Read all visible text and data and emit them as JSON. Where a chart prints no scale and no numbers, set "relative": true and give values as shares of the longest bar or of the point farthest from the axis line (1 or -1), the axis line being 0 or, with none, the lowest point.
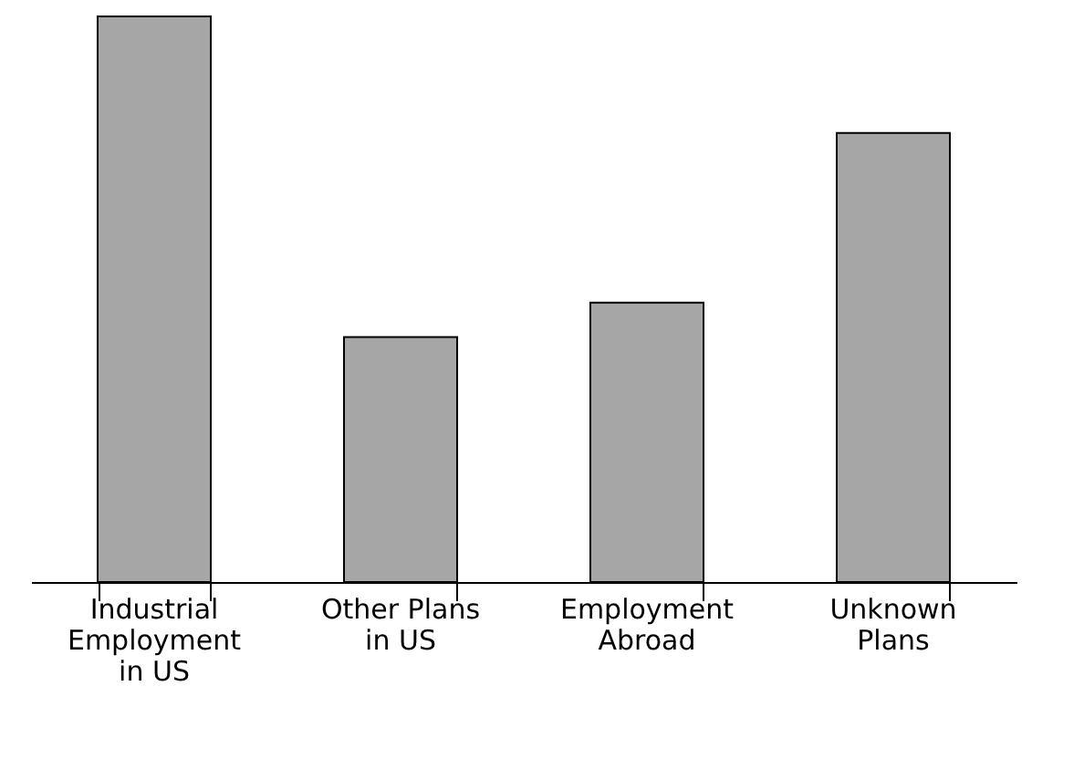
{
  "chart_data": {
    "type": "bar",
    "relative": true,
    "categories": [
      "Industrial Employment in US",
      "Other Plans in US",
      "Employment Abroad",
      "Unknown Plans"
    ],
    "values": [
      1,
      0.433,
      0.494,
      0.794
    ],
    "color": "#a6a6a6",
    "grid": false
  }
}
